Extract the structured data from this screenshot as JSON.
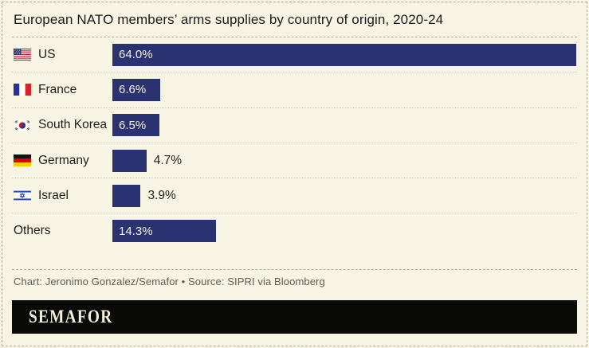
{
  "header": {
    "title": "European NATO members’ arms supplies by country of origin, 2020-24"
  },
  "chart_data": {
    "type": "bar",
    "orientation": "horizontal",
    "title": "European NATO members’ arms supplies by country of origin, 2020-24",
    "categories": [
      "US",
      "France",
      "South Korea",
      "Germany",
      "Israel",
      "Others"
    ],
    "values": [
      64.0,
      6.6,
      6.5,
      4.7,
      3.9,
      14.3
    ],
    "value_labels": [
      "64.0%",
      "6.6%",
      "6.5%",
      "4.7%",
      "3.9%",
      "14.3%"
    ],
    "unit": "%",
    "xlim": [
      0,
      64
    ],
    "grid": false,
    "legend": false,
    "bar_color": "#2b3272"
  },
  "rows": [
    {
      "label": "US",
      "value": 64.0,
      "value_label": "64.0%",
      "flag": "us"
    },
    {
      "label": "France",
      "value": 6.6,
      "value_label": "6.6%",
      "flag": "france"
    },
    {
      "label": "South Korea",
      "value": 6.5,
      "value_label": "6.5%",
      "flag": "south-korea"
    },
    {
      "label": "Germany",
      "value": 4.7,
      "value_label": "4.7%",
      "flag": "germany"
    },
    {
      "label": "Israel",
      "value": 3.9,
      "value_label": "3.9%",
      "flag": "israel"
    },
    {
      "label": "Others",
      "value": 14.3,
      "value_label": "14.3%",
      "flag": null
    }
  ],
  "footer": {
    "credit": "Chart: Jeronimo Gonzalez/Semafor • Source: SIPRI via Bloomberg",
    "logo": "SEMAFOR"
  },
  "colors": {
    "background": "#f8f4e4",
    "bar": "#2b3272",
    "bar_label_inside": "#f6f2e2",
    "text": "#1d1d1b",
    "credit_text": "#5e5d55",
    "dashed_rule": "#b1ae9e",
    "dotted_rule": "#d5cfb4",
    "footer_background": "#0a0a08",
    "footer_logo": "#f4f0dd"
  }
}
